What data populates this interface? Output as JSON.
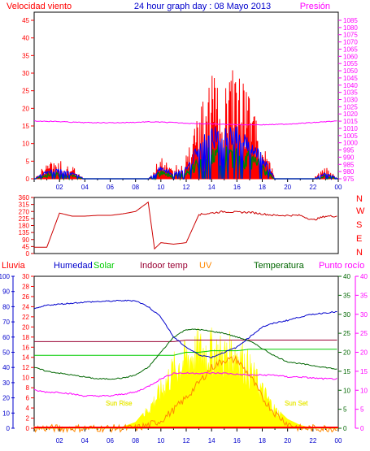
{
  "header": {
    "left_label": "Velocidad viento",
    "title": "24 hour graph day : 08 Mayo 2013",
    "right_label": "Presión"
  },
  "bottom_header": {
    "lluvia": "Lluvia",
    "humedad": "Humedad",
    "solar": "Solar",
    "indoor": "Indoor temp",
    "uv": "UV",
    "temperatura": "Temperatura",
    "punto_rocio": "Punto rocío"
  },
  "direction_letters": [
    "N",
    "W",
    "S",
    "E",
    "N"
  ],
  "sun_labels": {
    "sunrise": "Sun Rise",
    "sunset": "Sun Set"
  },
  "x_tick_labels": [
    "02",
    "04",
    "06",
    "08",
    "10",
    "12",
    "14",
    "16",
    "18",
    "20",
    "22",
    "00"
  ],
  "colors": {
    "wind_gust": "#ff0000",
    "wind_avg": "#0000ff",
    "wind_low": "#008000",
    "pressure": "#ff00ff",
    "direction": "#cc0000",
    "humidity": "#0000cc",
    "solar": "#00cc00",
    "indoor": "#990033",
    "uv": "#ff8800",
    "temperature": "#006600",
    "dewpoint": "#ff00ff",
    "solar_fill": "#ffff00",
    "rain": "#ff0000"
  },
  "chart_data": [
    {
      "type": "line",
      "title": "24 hour graph day : 08 Mayo 2013",
      "x": [
        0,
        1,
        2,
        3,
        4,
        5,
        6,
        7,
        8,
        9,
        10,
        11,
        12,
        13,
        14,
        15,
        16,
        17,
        18,
        19,
        20,
        21,
        22,
        23,
        24
      ],
      "series": [
        {
          "name": "Velocidad viento",
          "axis": "left",
          "values": [
            0,
            4,
            5,
            3,
            0,
            0,
            0,
            0,
            0,
            0,
            6,
            3,
            6,
            18,
            25,
            24,
            27,
            20,
            12,
            0,
            0,
            0,
            0,
            3,
            0
          ]
        },
        {
          "name": "Presión",
          "axis": "right",
          "values": [
            1015,
            1015,
            1014.7,
            1014.3,
            1014,
            1014,
            1013.9,
            1014,
            1014.2,
            1014.5,
            1014.3,
            1014,
            1013.6,
            1013.3,
            1013,
            1012.8,
            1012.6,
            1012.5,
            1012.5,
            1012.7,
            1013,
            1013.5,
            1014,
            1014.6,
            1015
          ]
        }
      ],
      "y_left": {
        "min": 0,
        "max": 45,
        "ticks": [
          0,
          5,
          10,
          15,
          20,
          25,
          30,
          35,
          40,
          45
        ]
      },
      "y_right": {
        "min": 975,
        "max": 1085,
        "ticks": [
          975,
          980,
          985,
          990,
          995,
          1000,
          1005,
          1010,
          1015,
          1020,
          1025,
          1030,
          1035,
          1040,
          1045,
          1050,
          1055,
          1060,
          1065,
          1070,
          1075,
          1080,
          1085
        ]
      }
    },
    {
      "type": "line",
      "y_ticks": [
        0,
        45,
        90,
        135,
        180,
        225,
        270,
        315,
        360
      ],
      "x": [
        0,
        1,
        2,
        3,
        4,
        5,
        6,
        7,
        8,
        9,
        9.5,
        10,
        11,
        12,
        13,
        14,
        15,
        16,
        17,
        18,
        19,
        20,
        21,
        22,
        23,
        24
      ],
      "values": [
        40,
        40,
        260,
        240,
        240,
        245,
        245,
        255,
        270,
        330,
        30,
        70,
        60,
        70,
        250,
        260,
        270,
        265,
        265,
        255,
        245,
        245,
        245,
        215,
        240,
        240
      ]
    },
    {
      "type": "line",
      "y_scales": {
        "lluvia": {
          "min": 0,
          "max": 100,
          "ticks": [
            0,
            10,
            20,
            30,
            40,
            50,
            60,
            70,
            80,
            90,
            100
          ]
        },
        "humedad": {
          "min": 0,
          "max": 30,
          "ticks": [
            0,
            2,
            4,
            6,
            8,
            10,
            12,
            14,
            16,
            18,
            20,
            22,
            24,
            26,
            28,
            30
          ]
        },
        "temperatura": {
          "min": 0,
          "max": 40,
          "ticks": [
            0,
            5,
            10,
            15,
            20,
            25,
            30,
            35,
            40
          ]
        },
        "punto_rocio": {
          "min": 0,
          "max": 40,
          "ticks": [
            0,
            5,
            10,
            15,
            20,
            25,
            30,
            35,
            40
          ]
        }
      },
      "x": [
        0,
        1,
        2,
        3,
        4,
        5,
        6,
        7,
        8,
        9,
        10,
        11,
        12,
        13,
        14,
        15,
        16,
        17,
        18,
        19,
        20,
        21,
        22,
        23,
        24
      ],
      "series": [
        {
          "name": "Humedad",
          "scale": "humedad",
          "values": [
            23.5,
            24.3,
            24.5,
            24.7,
            24.9,
            25,
            25.1,
            25.2,
            25.2,
            24,
            22,
            18,
            16,
            14.5,
            14,
            15,
            16,
            18,
            20,
            20.8,
            21.3,
            22,
            22.5,
            22.8,
            23
          ]
        },
        {
          "name": "Solar",
          "scale": "lluvia",
          "values": [
            48,
            48,
            48,
            48,
            48,
            48,
            48,
            48,
            48,
            48,
            48,
            48,
            50,
            50,
            51,
            51,
            51,
            52,
            52,
            52,
            52,
            52,
            52,
            52,
            52
          ]
        },
        {
          "name": "Indoor temp",
          "scale": "lluvia",
          "values": [
            57,
            57,
            57,
            57,
            57,
            57,
            57,
            57,
            57,
            57,
            57,
            57,
            58,
            58,
            58,
            58,
            58,
            58,
            58,
            58,
            58,
            58,
            58,
            58,
            58
          ]
        },
        {
          "name": "Temperatura",
          "scale": "temperatura",
          "values": [
            16,
            15,
            14.5,
            14,
            13.5,
            13,
            13,
            13.2,
            14,
            16,
            20,
            24,
            26,
            26,
            25.5,
            25,
            24,
            23,
            21,
            19,
            17.5,
            17,
            16.5,
            16,
            15.5
          ]
        },
        {
          "name": "Punto rocío",
          "scale": "punto_rocio",
          "values": [
            10,
            9.5,
            9.5,
            9,
            8.5,
            8.5,
            8.5,
            9,
            9.5,
            11,
            13,
            14.5,
            14.5,
            14.5,
            14.5,
            14.5,
            14.2,
            14,
            14,
            14,
            13.5,
            13.5,
            13.2,
            13,
            13
          ]
        },
        {
          "name": "UV",
          "scale": "lluvia",
          "values": [
            0,
            0,
            0,
            0,
            0,
            0,
            0,
            0,
            0,
            2,
            5,
            12,
            20,
            30,
            40,
            45,
            45,
            35,
            20,
            10,
            3,
            0,
            0,
            0,
            0
          ]
        }
      ],
      "solar_radiation_fill": {
        "scale": "lluvia",
        "values": [
          0,
          0,
          0,
          0,
          0,
          0,
          0,
          1,
          4,
          14,
          28,
          44,
          52,
          58,
          58,
          54,
          58,
          44,
          28,
          14,
          6,
          2,
          0,
          0,
          0
        ]
      }
    }
  ]
}
